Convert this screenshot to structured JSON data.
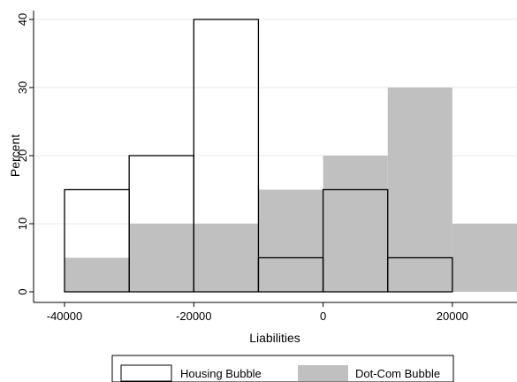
{
  "chart_data": {
    "type": "bar",
    "xlabel": "Liabilities",
    "ylabel": "Percent",
    "xlim": [
      -40000,
      30000
    ],
    "ylim": [
      0,
      40
    ],
    "xticks": [
      -40000,
      -20000,
      0,
      20000
    ],
    "yticks": [
      0,
      10,
      20,
      30,
      40
    ],
    "xtick_labels": [
      "-40000",
      "-20000",
      "0",
      "20000"
    ],
    "ytick_labels": [
      "0",
      "10",
      "20",
      "30",
      "40"
    ],
    "grid": true,
    "legend_position": "bottom",
    "series": [
      {
        "name": "Housing Bubble",
        "style": "outline",
        "color": "#000000",
        "bins": [
          {
            "x0": -40000,
            "x1": -30000,
            "value": 15
          },
          {
            "x0": -30000,
            "x1": -20000,
            "value": 20
          },
          {
            "x0": -20000,
            "x1": -10000,
            "value": 40
          },
          {
            "x0": -10000,
            "x1": 0,
            "value": 5
          },
          {
            "x0": 0,
            "x1": 10000,
            "value": 15
          },
          {
            "x0": 10000,
            "x1": 20000,
            "value": 5
          }
        ]
      },
      {
        "name": "Dot-Com Bubble",
        "style": "filled",
        "color": "#c0c0c0",
        "bins": [
          {
            "x0": -40000,
            "x1": -30000,
            "value": 5
          },
          {
            "x0": -30000,
            "x1": -20000,
            "value": 10
          },
          {
            "x0": -20000,
            "x1": -10000,
            "value": 10
          },
          {
            "x0": -10000,
            "x1": 0,
            "value": 15
          },
          {
            "x0": 0,
            "x1": 10000,
            "value": 20
          },
          {
            "x0": 10000,
            "x1": 20000,
            "value": 30
          },
          {
            "x0": 20000,
            "x1": 30000,
            "value": 10
          }
        ]
      }
    ]
  }
}
